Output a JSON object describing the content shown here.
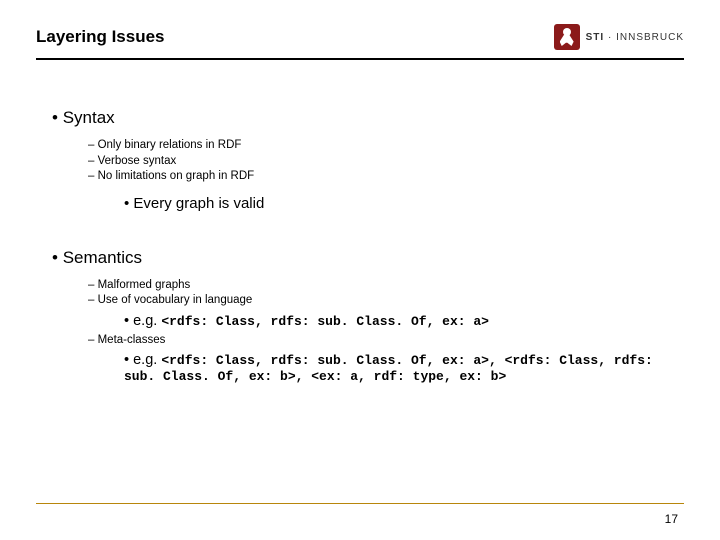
{
  "header": {
    "title": "Layering Issues",
    "logo_sti": "STI",
    "logo_dot": " · ",
    "logo_city": "INNSBRUCK"
  },
  "s1": {
    "heading": "Syntax",
    "b1": "Only binary relations in RDF",
    "b2": "Verbose syntax",
    "b3": "No limitations on graph in RDF",
    "sub": "Every graph is valid"
  },
  "s2": {
    "heading": "Semantics",
    "b1": "Malformed graphs",
    "b2": "Use of vocabulary in language",
    "eg1_label": "e.g. ",
    "eg1_code": "<rdfs: Class, rdfs: sub. Class. Of, ex: a>",
    "b3": "Meta-classes",
    "eg2_label": "e.g. ",
    "eg2_code": "<rdfs: Class, rdfs: sub. Class. Of, ex: a>, <rdfs: Class, rdfs: sub. Class. Of, ex: b>, <ex: a, rdf: type, ex: b>"
  },
  "page": "17",
  "colors": {
    "brand": "#8b1a1a",
    "rule": "#000000",
    "footer_rule": "#b8860b",
    "text": "#000000",
    "bg": "#ffffff"
  }
}
